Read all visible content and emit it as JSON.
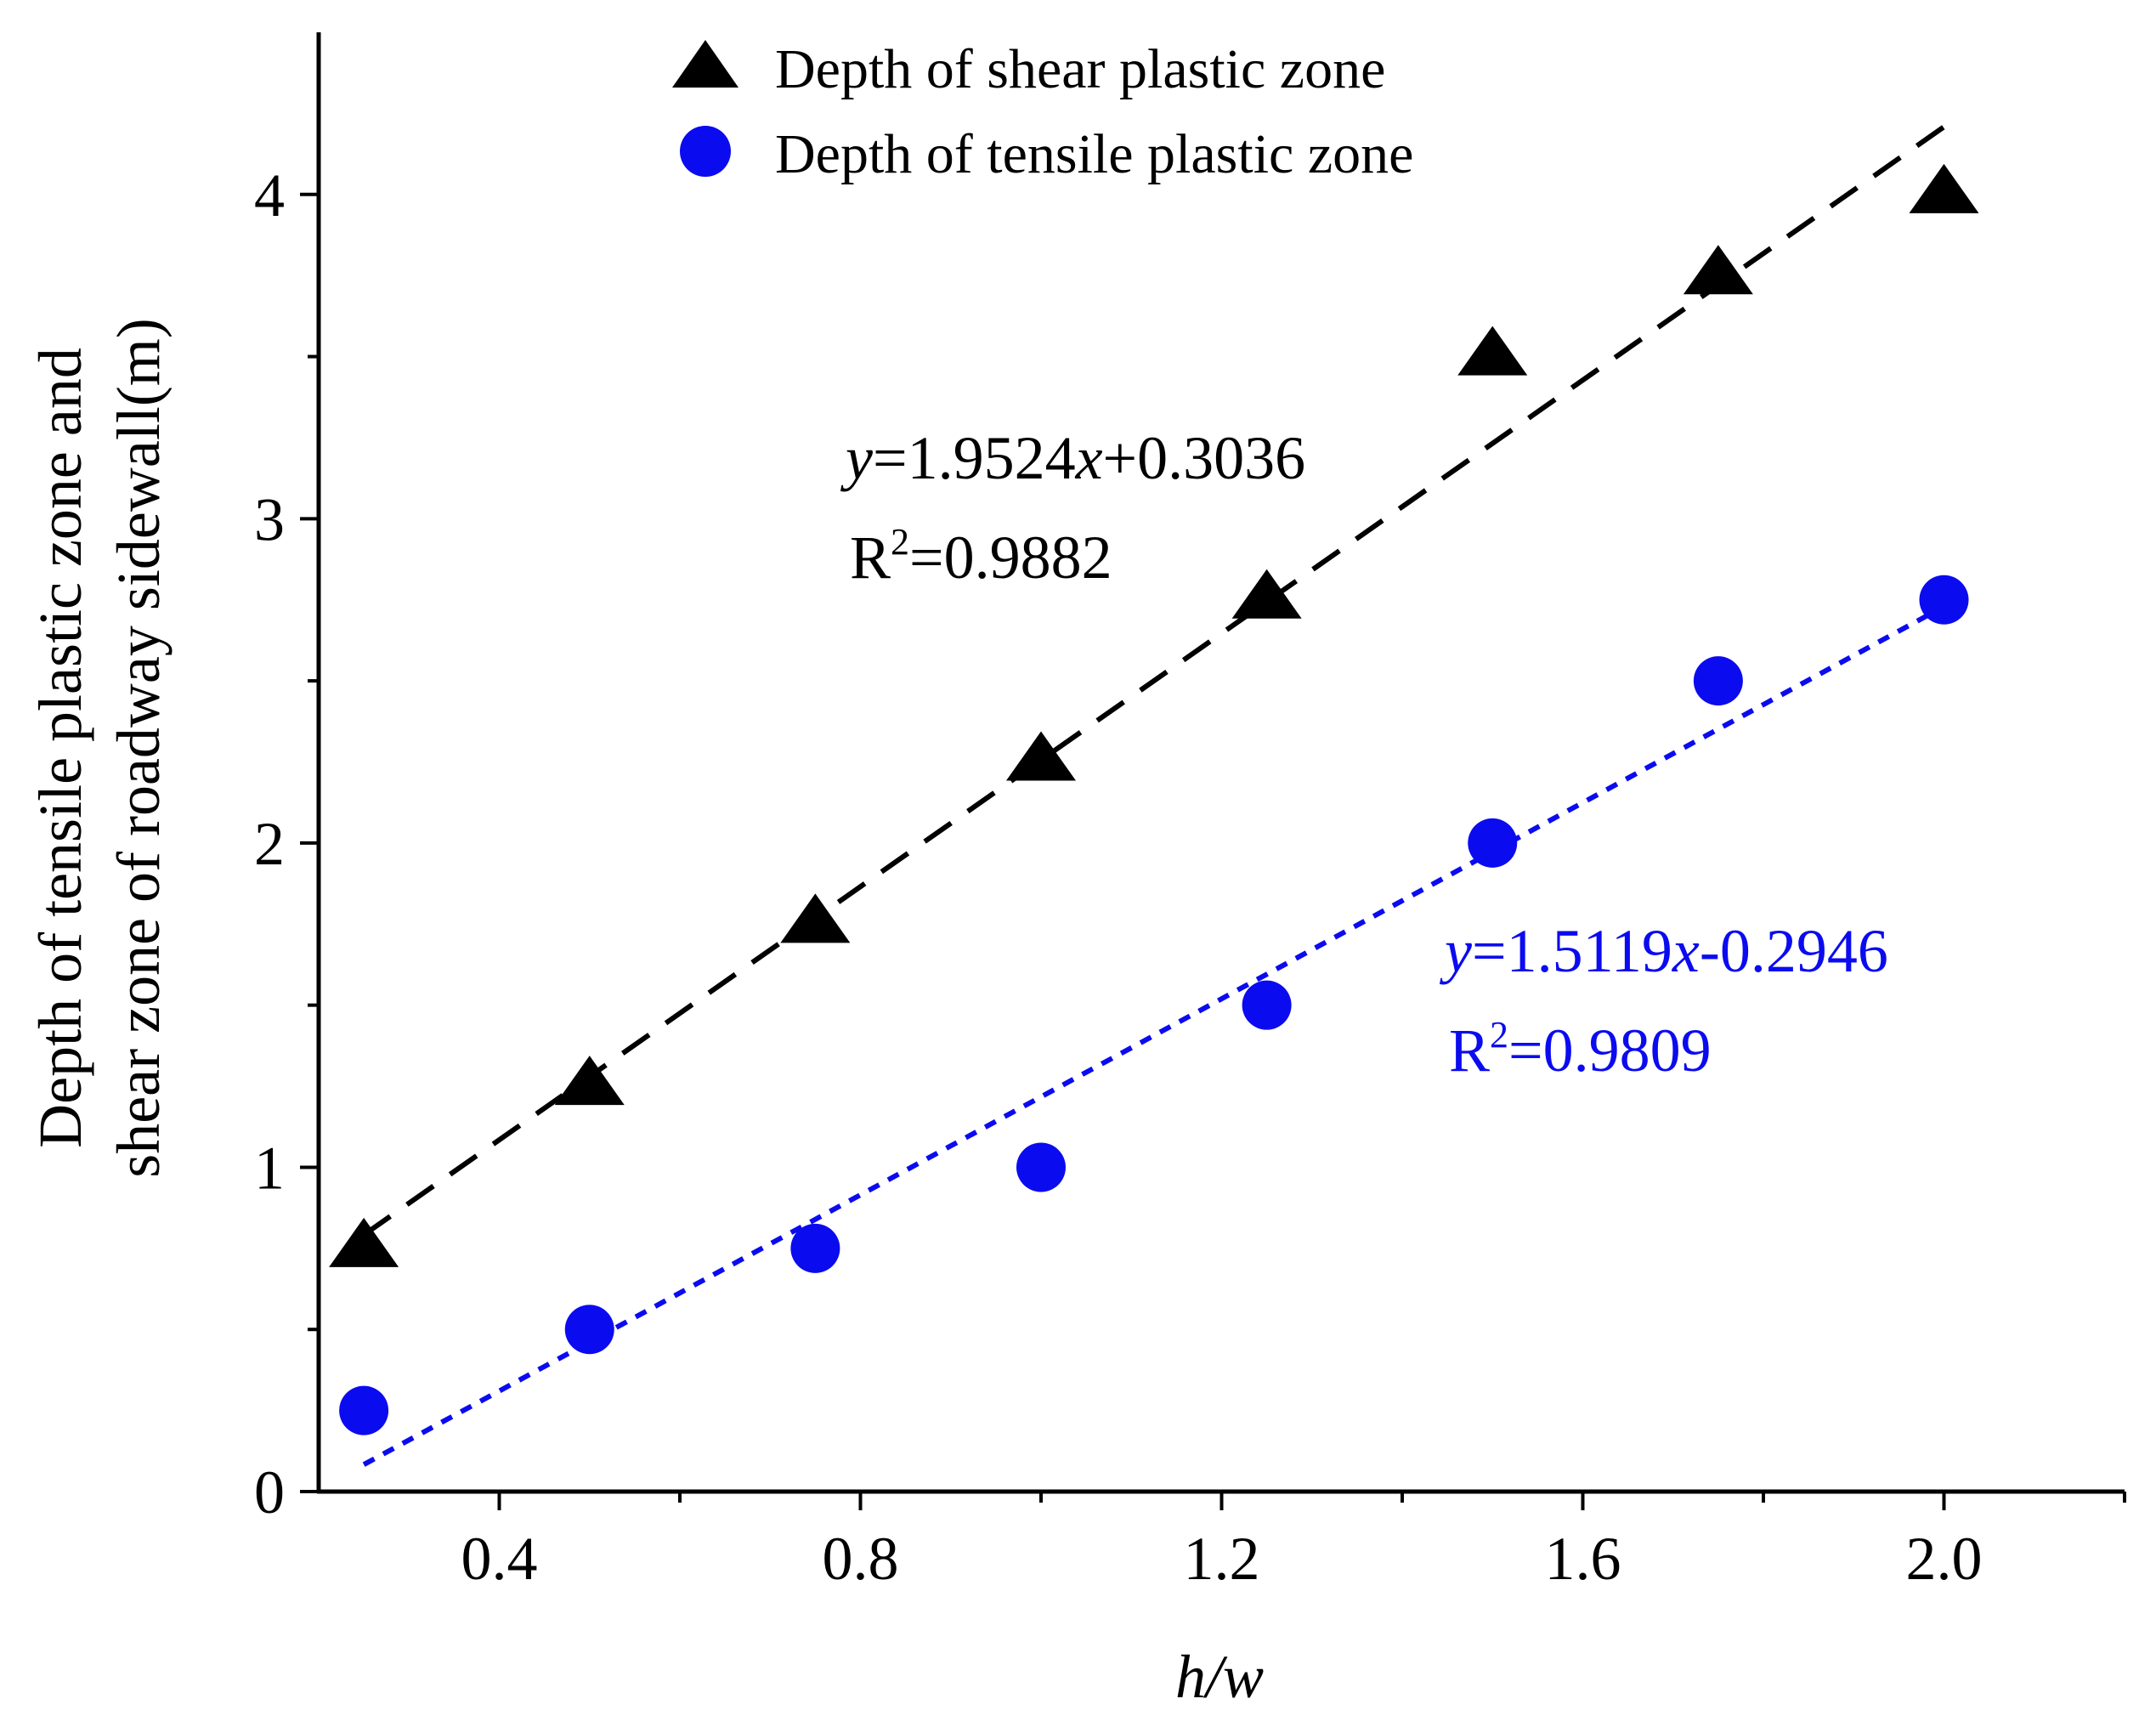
{
  "chart_data": {
    "type": "scatter",
    "title": "",
    "xlabel": "h/w",
    "ylabel_lines": [
      "Depth of tensile plastic zone and",
      "shear zone of roadway sidewall(m)"
    ],
    "xlim": [
      0.2,
      2.2
    ],
    "ylim": [
      0,
      4.5
    ],
    "x_ticks": [
      0.4,
      0.8,
      1.2,
      1.6,
      2.0
    ],
    "x_tick_labels": [
      "0.4",
      "0.8",
      "1.2",
      "1.6",
      "2.0"
    ],
    "x_minor_ticks": [
      0.6,
      1.0,
      1.4,
      1.8,
      2.2
    ],
    "y_ticks": [
      0,
      1,
      2,
      3,
      4
    ],
    "y_tick_labels": [
      "0",
      "1",
      "2",
      "3",
      "4"
    ],
    "y_minor_ticks": [
      0.5,
      1.5,
      2.5,
      3.5
    ],
    "legend_position": "top-center",
    "grid": false,
    "series": [
      {
        "name": "Depth of shear plastic zone",
        "marker": "triangle",
        "color": "#000000",
        "x": [
          0.25,
          0.5,
          0.75,
          1.0,
          1.25,
          1.5,
          1.75,
          2.0
        ],
        "y": [
          0.75,
          1.25,
          1.75,
          2.25,
          2.75,
          3.5,
          3.75,
          4.0
        ],
        "fit": {
          "slope": 1.9524,
          "intercept": 0.3036,
          "x_range": [
            0.25,
            2.0
          ],
          "style": "dashed",
          "equation_parts": [
            "y",
            "=1.9524",
            "x",
            "+0.3036"
          ],
          "r2_label": "R",
          "r2_sup": "2",
          "r2_value": "=0.9882"
        }
      },
      {
        "name": "Depth of tensile plastic zone",
        "marker": "circle",
        "color": "#0b0bf0",
        "x": [
          0.25,
          0.5,
          0.75,
          1.0,
          1.25,
          1.5,
          1.75,
          2.0
        ],
        "y": [
          0.25,
          0.5,
          0.75,
          1.0,
          1.5,
          2.0,
          2.5,
          2.75
        ],
        "fit": {
          "slope": 1.5119,
          "intercept": -0.2946,
          "x_range": [
            0.25,
            2.0
          ],
          "style": "dotted",
          "equation_parts": [
            "y",
            "=1.5119",
            "x",
            "-0.2946"
          ],
          "r2_label": "R",
          "r2_sup": "2",
          "r2_value": "=0.9809"
        }
      }
    ]
  }
}
